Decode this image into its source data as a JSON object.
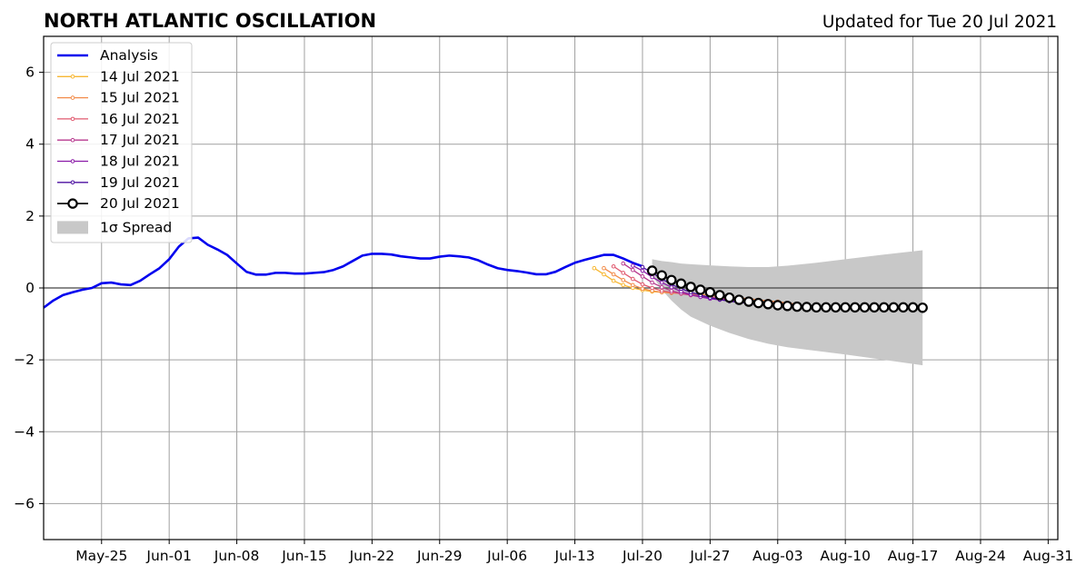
{
  "title": "NORTH ATLANTIC OSCILLATION",
  "subtitle": "Updated for Tue 20 Jul 2021",
  "chart_data": {
    "type": "line",
    "title": "NORTH ATLANTIC OSCILLATION",
    "subtitle": "Updated for Tue 20 Jul 2021",
    "xlabel": "",
    "ylabel": "",
    "x_axis_type": "date",
    "xlim": [
      "2021-05-19",
      "2021-09-01"
    ],
    "ylim": [
      -7,
      7
    ],
    "grid": true,
    "x_ticks": [
      "2021-05-25",
      "2021-06-01",
      "2021-06-08",
      "2021-06-15",
      "2021-06-22",
      "2021-06-29",
      "2021-07-06",
      "2021-07-13",
      "2021-07-20",
      "2021-07-27",
      "2021-08-03",
      "2021-08-10",
      "2021-08-17",
      "2021-08-24",
      "2021-08-31"
    ],
    "x_tick_labels": [
      "May-25",
      "Jun-01",
      "Jun-08",
      "Jun-15",
      "Jun-22",
      "Jun-29",
      "Jul-06",
      "Jul-13",
      "Jul-20",
      "Jul-27",
      "Aug-03",
      "Aug-10",
      "Aug-17",
      "Aug-24",
      "Aug-31"
    ],
    "y_ticks": [
      -6,
      -4,
      -2,
      0,
      2,
      4,
      6
    ],
    "y_tick_labels": [
      "−6",
      "−4",
      "−2",
      "0",
      "2",
      "4",
      "6"
    ],
    "legend_position": "top-left",
    "zero_line": true,
    "colors": {
      "analysis": "#0000ee",
      "spread": "#c8c8c8",
      "grid": "#a0a0a0",
      "zero_line": "#444444",
      "forecast_latest": "#000000"
    },
    "analysis": {
      "name": "Analysis",
      "x": [
        "2021-05-19",
        "2021-05-20",
        "2021-05-21",
        "2021-05-22",
        "2021-05-23",
        "2021-05-24",
        "2021-05-25",
        "2021-05-26",
        "2021-05-27",
        "2021-05-28",
        "2021-05-29",
        "2021-05-30",
        "2021-05-31",
        "2021-06-01",
        "2021-06-02",
        "2021-06-03",
        "2021-06-04",
        "2021-06-05",
        "2021-06-06",
        "2021-06-07",
        "2021-06-08",
        "2021-06-09",
        "2021-06-10",
        "2021-06-11",
        "2021-06-12",
        "2021-06-13",
        "2021-06-14",
        "2021-06-15",
        "2021-06-16",
        "2021-06-17",
        "2021-06-18",
        "2021-06-19",
        "2021-06-20",
        "2021-06-21",
        "2021-06-22",
        "2021-06-23",
        "2021-06-24",
        "2021-06-25",
        "2021-06-26",
        "2021-06-27",
        "2021-06-28",
        "2021-06-29",
        "2021-06-30",
        "2021-07-01",
        "2021-07-02",
        "2021-07-03",
        "2021-07-04",
        "2021-07-05",
        "2021-07-06",
        "2021-07-07",
        "2021-07-08",
        "2021-07-09",
        "2021-07-10",
        "2021-07-11",
        "2021-07-12",
        "2021-07-13",
        "2021-07-14",
        "2021-07-15",
        "2021-07-16",
        "2021-07-17",
        "2021-07-18",
        "2021-07-19",
        "2021-07-20"
      ],
      "values": [
        -0.55,
        -0.35,
        -0.2,
        -0.12,
        -0.05,
        0.0,
        0.13,
        0.15,
        0.1,
        0.08,
        0.2,
        0.38,
        0.55,
        0.8,
        1.15,
        1.38,
        1.4,
        1.2,
        1.07,
        0.92,
        0.68,
        0.45,
        0.37,
        0.37,
        0.42,
        0.42,
        0.4,
        0.4,
        0.42,
        0.44,
        0.5,
        0.6,
        0.75,
        0.9,
        0.95,
        0.95,
        0.93,
        0.88,
        0.85,
        0.82,
        0.82,
        0.87,
        0.9,
        0.88,
        0.85,
        0.77,
        0.65,
        0.55,
        0.5,
        0.47,
        0.43,
        0.38,
        0.38,
        0.45,
        0.58,
        0.7,
        0.78,
        0.85,
        0.92,
        0.92,
        0.82,
        0.7,
        0.6
      ]
    },
    "forecasts": [
      {
        "name": "14 Jul 2021",
        "color": "#f7b733",
        "x": [
          "2021-07-15",
          "2021-07-16",
          "2021-07-17",
          "2021-07-18",
          "2021-07-19",
          "2021-07-20",
          "2021-07-21",
          "2021-07-22",
          "2021-07-23",
          "2021-07-24",
          "2021-07-25",
          "2021-07-26",
          "2021-07-27",
          "2021-07-28",
          "2021-07-29"
        ],
        "values": [
          0.55,
          0.38,
          0.2,
          0.08,
          0.0,
          -0.06,
          -0.1,
          -0.12,
          -0.13,
          -0.15,
          -0.17,
          -0.18,
          -0.2,
          -0.22,
          -0.24
        ]
      },
      {
        "name": "15 Jul 2021",
        "color": "#f28c4a",
        "x": [
          "2021-07-16",
          "2021-07-17",
          "2021-07-18",
          "2021-07-19",
          "2021-07-20",
          "2021-07-21",
          "2021-07-22",
          "2021-07-23",
          "2021-07-24",
          "2021-07-25",
          "2021-07-26",
          "2021-07-27",
          "2021-07-28",
          "2021-07-29",
          "2021-07-30",
          "2021-07-31",
          "2021-08-01",
          "2021-08-02",
          "2021-08-03",
          "2021-08-04",
          "2021-08-05"
        ],
        "values": [
          0.55,
          0.38,
          0.22,
          0.08,
          -0.02,
          -0.08,
          -0.12,
          -0.14,
          -0.15,
          -0.17,
          -0.18,
          -0.2,
          -0.22,
          -0.25,
          -0.28,
          -0.3,
          -0.33,
          -0.36,
          -0.38,
          -0.42,
          -0.45
        ]
      },
      {
        "name": "16 Jul 2021",
        "color": "#e0586e",
        "x": [
          "2021-07-17",
          "2021-07-18",
          "2021-07-19",
          "2021-07-20",
          "2021-07-21",
          "2021-07-22",
          "2021-07-23",
          "2021-07-24",
          "2021-07-25",
          "2021-07-26",
          "2021-07-27",
          "2021-07-28",
          "2021-07-29",
          "2021-07-30",
          "2021-07-31",
          "2021-08-01",
          "2021-08-02",
          "2021-08-03",
          "2021-08-04",
          "2021-08-05",
          "2021-08-06"
        ],
        "values": [
          0.6,
          0.42,
          0.25,
          0.1,
          0.0,
          -0.08,
          -0.12,
          -0.16,
          -0.2,
          -0.22,
          -0.25,
          -0.28,
          -0.3,
          -0.33,
          -0.36,
          -0.38,
          -0.4,
          -0.42,
          -0.45,
          -0.47,
          -0.5
        ]
      },
      {
        "name": "17 Jul 2021",
        "color": "#b8398f",
        "x": [
          "2021-07-18",
          "2021-07-19",
          "2021-07-20",
          "2021-07-21",
          "2021-07-22",
          "2021-07-23",
          "2021-07-24",
          "2021-07-25",
          "2021-07-26",
          "2021-07-27",
          "2021-07-28",
          "2021-07-29",
          "2021-07-30",
          "2021-07-31",
          "2021-08-01",
          "2021-08-02",
          "2021-08-03",
          "2021-08-04",
          "2021-08-05",
          "2021-08-06",
          "2021-08-07"
        ],
        "values": [
          0.68,
          0.5,
          0.32,
          0.15,
          0.02,
          -0.08,
          -0.15,
          -0.2,
          -0.25,
          -0.28,
          -0.3,
          -0.33,
          -0.36,
          -0.38,
          -0.42,
          -0.45,
          -0.47,
          -0.5,
          -0.52,
          -0.54,
          -0.55
        ]
      },
      {
        "name": "18 Jul 2021",
        "color": "#8a1aa8",
        "x": [
          "2021-07-19",
          "2021-07-20",
          "2021-07-21",
          "2021-07-22",
          "2021-07-23",
          "2021-07-24",
          "2021-07-25",
          "2021-07-26",
          "2021-07-27",
          "2021-07-28",
          "2021-07-29",
          "2021-07-30",
          "2021-07-31",
          "2021-08-01",
          "2021-08-02",
          "2021-08-03",
          "2021-08-04",
          "2021-08-05",
          "2021-08-06",
          "2021-08-07",
          "2021-08-08"
        ],
        "values": [
          0.62,
          0.48,
          0.3,
          0.15,
          0.02,
          -0.1,
          -0.18,
          -0.25,
          -0.3,
          -0.33,
          -0.36,
          -0.4,
          -0.43,
          -0.46,
          -0.48,
          -0.5,
          -0.52,
          -0.54,
          -0.55,
          -0.56,
          -0.57
        ]
      },
      {
        "name": "19 Jul 2021",
        "color": "#4b0fa0",
        "x": [
          "2021-07-20",
          "2021-07-21",
          "2021-07-22",
          "2021-07-23",
          "2021-07-24",
          "2021-07-25",
          "2021-07-26",
          "2021-07-27",
          "2021-07-28",
          "2021-07-29",
          "2021-07-30",
          "2021-07-31",
          "2021-08-01",
          "2021-08-02",
          "2021-08-03",
          "2021-08-04",
          "2021-08-05",
          "2021-08-06",
          "2021-08-07",
          "2021-08-08",
          "2021-08-09"
        ],
        "values": [
          0.58,
          0.42,
          0.25,
          0.1,
          -0.02,
          -0.12,
          -0.2,
          -0.27,
          -0.32,
          -0.37,
          -0.4,
          -0.43,
          -0.46,
          -0.48,
          -0.5,
          -0.52,
          -0.54,
          -0.55,
          -0.56,
          -0.57,
          -0.58
        ]
      },
      {
        "name": "20 Jul 2021",
        "color": "#000000",
        "marker": "open-circle",
        "x": [
          "2021-07-21",
          "2021-07-22",
          "2021-07-23",
          "2021-07-24",
          "2021-07-25",
          "2021-07-26",
          "2021-07-27",
          "2021-07-28",
          "2021-07-29",
          "2021-07-30",
          "2021-07-31",
          "2021-08-01",
          "2021-08-02",
          "2021-08-03",
          "2021-08-04",
          "2021-08-05",
          "2021-08-06",
          "2021-08-07",
          "2021-08-08",
          "2021-08-09",
          "2021-08-10",
          "2021-08-11",
          "2021-08-12",
          "2021-08-13",
          "2021-08-14",
          "2021-08-15",
          "2021-08-16",
          "2021-08-17",
          "2021-08-18"
        ],
        "values": [
          0.48,
          0.35,
          0.22,
          0.12,
          0.03,
          -0.05,
          -0.12,
          -0.2,
          -0.27,
          -0.33,
          -0.38,
          -0.42,
          -0.45,
          -0.48,
          -0.5,
          -0.52,
          -0.53,
          -0.54,
          -0.54,
          -0.54,
          -0.54,
          -0.54,
          -0.54,
          -0.54,
          -0.54,
          -0.54,
          -0.54,
          -0.54,
          -0.55
        ]
      }
    ],
    "spread": {
      "name": "1σ Spread",
      "x": [
        "2021-07-21",
        "2021-07-22",
        "2021-07-23",
        "2021-07-24",
        "2021-07-25",
        "2021-07-27",
        "2021-07-29",
        "2021-07-31",
        "2021-08-02",
        "2021-08-04",
        "2021-08-07",
        "2021-08-10",
        "2021-08-14",
        "2021-08-18"
      ],
      "upper": [
        0.8,
        0.75,
        0.72,
        0.68,
        0.66,
        0.63,
        0.6,
        0.58,
        0.58,
        0.62,
        0.7,
        0.8,
        0.93,
        1.05
      ],
      "lower": [
        0.35,
        -0.05,
        -0.35,
        -0.6,
        -0.8,
        -1.05,
        -1.25,
        -1.42,
        -1.55,
        -1.65,
        -1.75,
        -1.85,
        -2.0,
        -2.15
      ]
    }
  }
}
